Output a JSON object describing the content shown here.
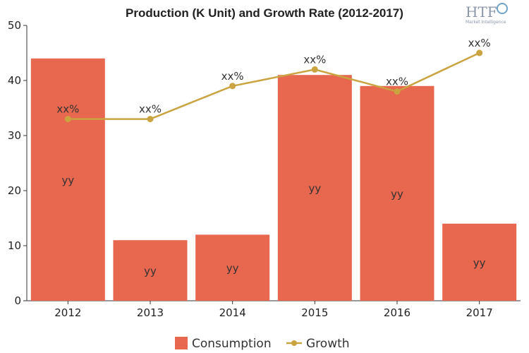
{
  "chart_data": {
    "type": "bar",
    "title": "Production (K Unit) and Growth Rate (2012-2017)",
    "categories": [
      "2012",
      "2013",
      "2014",
      "2015",
      "2016",
      "2017"
    ],
    "ylim": [
      0,
      50
    ],
    "yticks": [
      0,
      10,
      20,
      30,
      40,
      50
    ],
    "series": [
      {
        "name": "Consumption",
        "kind": "bar",
        "color": "#e8684f",
        "values": [
          44,
          11,
          12,
          41,
          39,
          14
        ],
        "labels": [
          "yy",
          "yy",
          "yy",
          "yy",
          "yy",
          "yy"
        ]
      },
      {
        "name": "Growth",
        "kind": "line",
        "color": "#c9a441",
        "values": [
          33,
          33,
          39,
          42,
          38,
          45
        ],
        "labels": [
          "xx%",
          "xx%",
          "xx%",
          "xx%",
          "xx%",
          "xx%"
        ]
      }
    ],
    "legend_position": "bottom-center",
    "grid": false
  },
  "logo": {
    "text": "HTF",
    "subtext": "Market Intelligence"
  }
}
